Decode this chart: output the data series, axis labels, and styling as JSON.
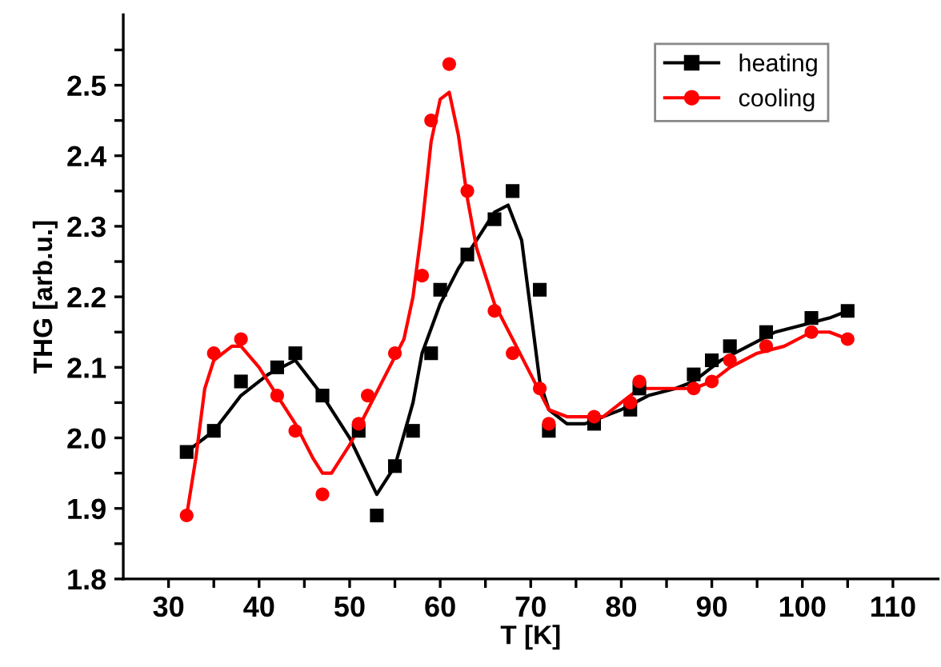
{
  "chart_data": {
    "type": "scatter",
    "xlabel": "T [K]",
    "ylabel": "THG [arb.u.]",
    "xlim": [
      25,
      115
    ],
    "ylim": [
      1.8,
      2.6
    ],
    "xticks": [
      30,
      {
        "value": 35,
        "label": null
      },
      40,
      {
        "value": 45,
        "label": null
      },
      50,
      {
        "value": 55,
        "label": null
      },
      60,
      {
        "value": 65,
        "label": null
      },
      70,
      {
        "value": 75,
        "label": null
      },
      80,
      {
        "value": 85,
        "label": null
      },
      90,
      {
        "value": 95,
        "label": null
      },
      100,
      {
        "value": 105,
        "label": null
      },
      110
    ],
    "yticks": [
      1.8,
      {
        "value": 1.85,
        "label": null
      },
      1.9,
      {
        "value": 1.95,
        "label": null
      },
      {
        "value": 2.0,
        "label": "2.0"
      },
      {
        "value": 2.05,
        "label": null
      },
      2.1,
      {
        "value": 2.15,
        "label": null
      },
      2.2,
      {
        "value": 2.25,
        "label": null
      },
      2.3,
      {
        "value": 2.35,
        "label": null
      },
      2.4,
      {
        "value": 2.45,
        "label": null
      },
      2.5,
      {
        "value": 2.55,
        "label": null
      }
    ],
    "grid": false,
    "legend": "top right",
    "series": [
      {
        "name": "heating",
        "marker": "square",
        "color": "#000000",
        "x": [
          32,
          35,
          38,
          42,
          44,
          47,
          51,
          53,
          55,
          57,
          59,
          60,
          63,
          66,
          68,
          71,
          72,
          77,
          81,
          82,
          88,
          90,
          92,
          96,
          101,
          105
        ],
        "values": [
          1.98,
          2.01,
          2.08,
          2.1,
          2.12,
          2.06,
          2.01,
          1.89,
          1.96,
          2.01,
          2.12,
          2.21,
          2.26,
          2.31,
          2.35,
          2.21,
          2.01,
          2.02,
          2.04,
          2.07,
          2.09,
          2.11,
          2.13,
          2.15,
          2.17,
          2.18
        ]
      },
      {
        "name": "cooling",
        "marker": "circle",
        "color": "#ff0000",
        "x": [
          32,
          35,
          38,
          42,
          44,
          47,
          51,
          52,
          55,
          58,
          59,
          61,
          63,
          66,
          68,
          71,
          72,
          77,
          81,
          82,
          88,
          90,
          92,
          96,
          101,
          105
        ],
        "values": [
          1.89,
          2.12,
          2.14,
          2.06,
          2.01,
          1.92,
          2.02,
          2.06,
          2.12,
          2.23,
          2.45,
          2.53,
          2.35,
          2.18,
          2.12,
          2.07,
          2.02,
          2.03,
          2.05,
          2.08,
          2.07,
          2.08,
          2.11,
          2.13,
          2.15,
          2.14
        ]
      },
      {
        "type": "line",
        "marker": "none",
        "color": "#000000",
        "x": [
          32,
          35,
          38,
          41,
          44,
          47,
          50,
          53,
          55,
          57,
          58,
          60,
          62,
          64,
          66,
          67.5,
          69,
          70,
          71,
          72,
          74,
          76,
          78,
          80,
          83,
          86,
          88,
          91,
          94,
          97,
          100,
          103,
          105
        ],
        "values": [
          1.98,
          2.01,
          2.06,
          2.09,
          2.11,
          2.06,
          2.0,
          1.92,
          1.96,
          2.05,
          2.12,
          2.19,
          2.24,
          2.28,
          2.32,
          2.33,
          2.28,
          2.18,
          2.08,
          2.04,
          2.02,
          2.02,
          2.03,
          2.04,
          2.06,
          2.07,
          2.08,
          2.11,
          2.13,
          2.15,
          2.16,
          2.17,
          2.18
        ]
      },
      {
        "type": "line",
        "marker": "none",
        "color": "#ff0000",
        "x": [
          32,
          33,
          34,
          35,
          37,
          38,
          40,
          42,
          44,
          46,
          47,
          48,
          50,
          52,
          54,
          56,
          57,
          58,
          59,
          60,
          61,
          62,
          63,
          64,
          66,
          68,
          70,
          72,
          74,
          76,
          78,
          80,
          82,
          85,
          88,
          90,
          92,
          95,
          98,
          101,
          103,
          105
        ],
        "values": [
          1.89,
          1.97,
          2.07,
          2.11,
          2.13,
          2.13,
          2.1,
          2.06,
          2.02,
          1.97,
          1.95,
          1.95,
          1.99,
          2.04,
          2.09,
          2.14,
          2.2,
          2.3,
          2.42,
          2.48,
          2.49,
          2.43,
          2.34,
          2.27,
          2.19,
          2.14,
          2.09,
          2.04,
          2.03,
          2.03,
          2.03,
          2.05,
          2.07,
          2.07,
          2.07,
          2.08,
          2.1,
          2.12,
          2.13,
          2.15,
          2.15,
          2.14
        ]
      }
    ]
  }
}
